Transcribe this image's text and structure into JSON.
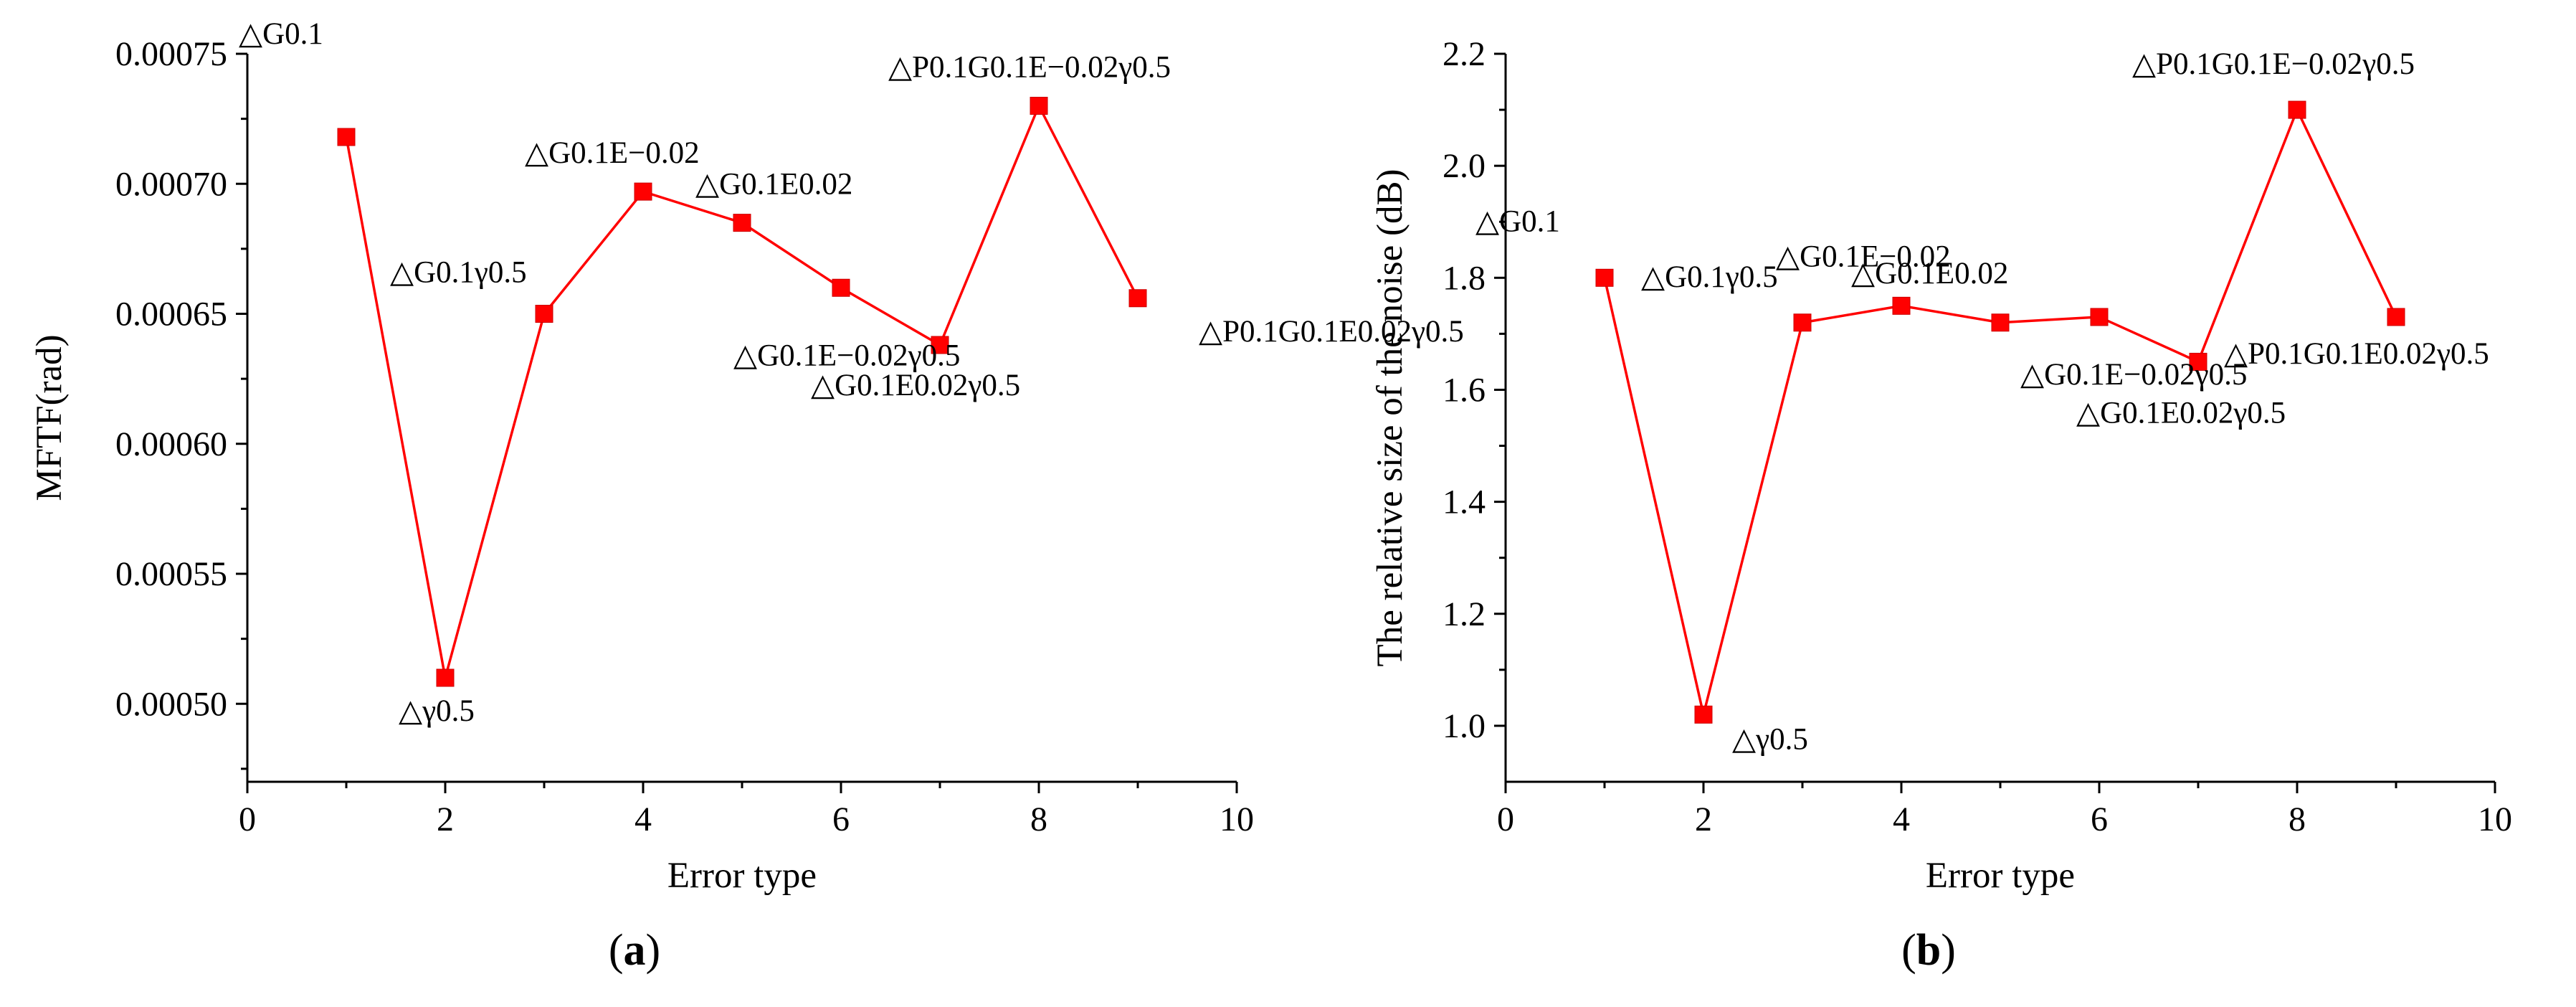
{
  "chart_data": [
    {
      "type": "line",
      "panel_label": "a",
      "xlabel": "Error type",
      "ylabel": "MFTF(rad)",
      "xlim": [
        0,
        10
      ],
      "ylim": [
        0.00047,
        0.00075
      ],
      "xticks": [
        "0",
        "2",
        "4",
        "6",
        "8",
        "10"
      ],
      "xtick_values": [
        0,
        2,
        4,
        6,
        8,
        10
      ],
      "yticks": [
        "0.00050",
        "0.00055",
        "0.00060",
        "0.00065",
        "0.00070",
        "0.00075"
      ],
      "ytick_values": [
        0.0005,
        0.00055,
        0.0006,
        0.00065,
        0.0007,
        0.00075
      ],
      "series": [
        {
          "color": "#ff0000",
          "marker": "square",
          "x": [
            1,
            2,
            3,
            4,
            5,
            6,
            7,
            8,
            9
          ],
          "y": [
            0.000718,
            0.00051,
            0.00065,
            0.000697,
            0.000685,
            0.00066,
            0.000638,
            0.00073,
            0.000656
          ]
        }
      ],
      "annotations": [
        {
          "text": "△G0.1",
          "x": 1.0,
          "y": 0.000718
        },
        {
          "text": "△γ0.5",
          "x": 2.0,
          "y": 0.00051
        },
        {
          "text": "△G0.1γ0.5",
          "x": 3.0,
          "y": 0.00065
        },
        {
          "text": "△G0.1E−0.02",
          "x": 4.0,
          "y": 0.000697
        },
        {
          "text": "△G0.1E0.02",
          "x": 5.0,
          "y": 0.000685
        },
        {
          "text": "△G0.1E−0.02γ0.5",
          "x": 6.0,
          "y": 0.00066
        },
        {
          "text": "△G0.1E0.02γ0.5",
          "x": 7.0,
          "y": 0.000638
        },
        {
          "text": "△P0.1G0.1E−0.02γ0.5",
          "x": 8.0,
          "y": 0.00073
        },
        {
          "text": "△P0.1G0.1E0.02γ0.5",
          "x": 9.0,
          "y": 0.000656
        }
      ]
    },
    {
      "type": "line",
      "panel_label": "b",
      "xlabel": "Error type",
      "ylabel": "The relative size of the noise (dB)",
      "xlim": [
        0,
        10
      ],
      "ylim": [
        0.9,
        2.2
      ],
      "xticks": [
        "0",
        "2",
        "4",
        "6",
        "8",
        "10"
      ],
      "xtick_values": [
        0,
        2,
        4,
        6,
        8,
        10
      ],
      "yticks": [
        "1.0",
        "1.2",
        "1.4",
        "1.6",
        "1.8",
        "2.0",
        "2.2"
      ],
      "ytick_values": [
        1.0,
        1.2,
        1.4,
        1.6,
        1.8,
        2.0,
        2.2
      ],
      "series": [
        {
          "color": "#ff0000",
          "marker": "square",
          "x": [
            1,
            2,
            3,
            4,
            5,
            6,
            7,
            8,
            9
          ],
          "y": [
            1.8,
            1.02,
            1.72,
            1.75,
            1.72,
            1.73,
            1.65,
            2.1,
            1.73
          ]
        }
      ],
      "annotations": [
        {
          "text": "△G0.1",
          "x": 1.0,
          "y": 1.8
        },
        {
          "text": "△γ0.5",
          "x": 2.0,
          "y": 1.02
        },
        {
          "text": "△G0.1γ0.5",
          "x": 3.0,
          "y": 1.72
        },
        {
          "text": "△G0.1E−0.02",
          "x": 4.0,
          "y": 1.75
        },
        {
          "text": "△G0.1E0.02",
          "x": 5.0,
          "y": 1.72
        },
        {
          "text": "△G0.1E−0.02γ0.5",
          "x": 6.0,
          "y": 1.73
        },
        {
          "text": "△G0.1E0.02γ0.5",
          "x": 7.0,
          "y": 1.65
        },
        {
          "text": "△P0.1G0.1E−0.02γ0.5",
          "x": 8.0,
          "y": 2.1
        },
        {
          "text": "△P0.1G0.1E0.02γ0.5",
          "x": 9.0,
          "y": 1.73
        }
      ]
    }
  ]
}
